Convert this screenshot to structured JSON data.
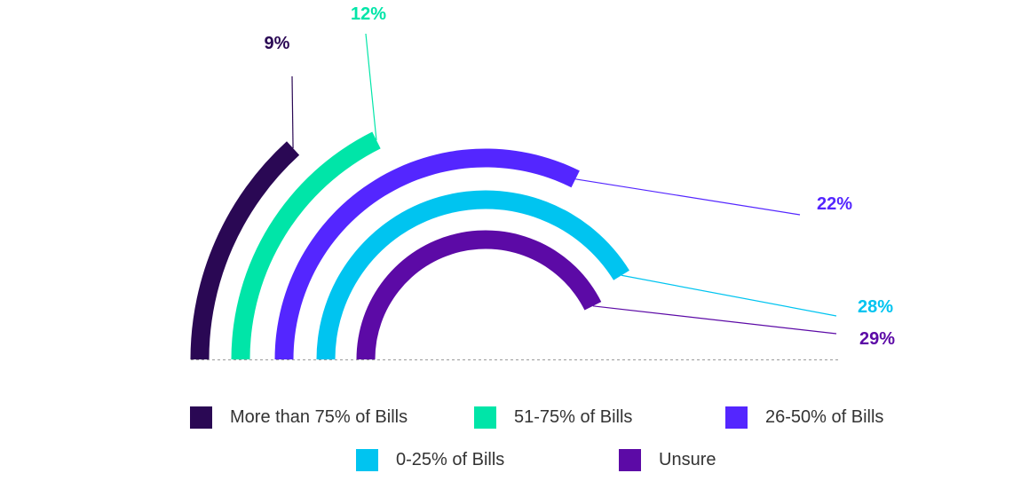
{
  "chart_data": {
    "type": "radial-bar",
    "series": [
      {
        "name": "More than 75% of Bills",
        "value": 9,
        "label": "9%",
        "color": "#2a0854"
      },
      {
        "name": "51-75% of Bills",
        "value": 12,
        "label": "12%",
        "color": "#00e5a8"
      },
      {
        "name": "26-50% of Bills",
        "value": 22,
        "label": "22%",
        "color": "#5426ff"
      },
      {
        "name": "0-25% of Bills",
        "value": 28,
        "label": "28%",
        "color": "#00c4f0"
      },
      {
        "name": "Unsure",
        "value": 29,
        "label": "29%",
        "color": "#5c0aa6"
      }
    ],
    "legend_placement": "bottom",
    "baseline": "dashed"
  }
}
